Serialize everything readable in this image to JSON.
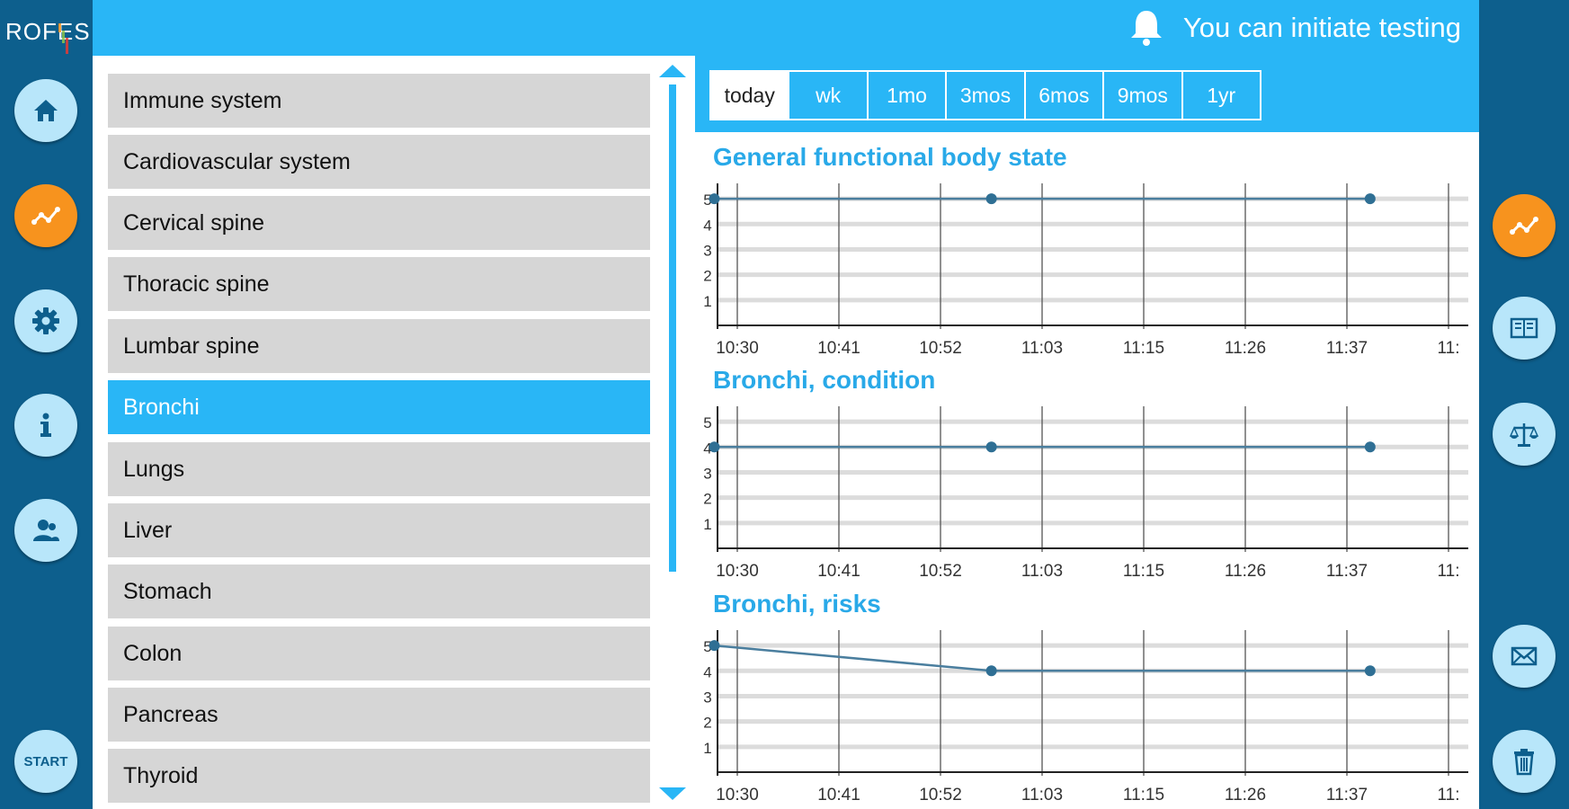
{
  "app": {
    "logo_text": "ROFES"
  },
  "left_nav": [
    {
      "name": "home",
      "icon": "home-icon"
    },
    {
      "name": "charts",
      "icon": "chart-line-icon",
      "active": true
    },
    {
      "name": "settings",
      "icon": "gear-icon"
    },
    {
      "name": "info",
      "icon": "info-icon"
    },
    {
      "name": "users",
      "icon": "users-icon"
    }
  ],
  "start_button": {
    "label": "START"
  },
  "right_nav": [
    {
      "name": "charts",
      "icon": "chart-line-icon",
      "active": true
    },
    {
      "name": "journal",
      "icon": "book-icon"
    },
    {
      "name": "balance",
      "icon": "scales-icon"
    },
    {
      "name": "mail",
      "icon": "mail-icon"
    },
    {
      "name": "delete",
      "icon": "trash-icon"
    }
  ],
  "notification": {
    "text": "You can initiate testing",
    "icon": "bell-icon"
  },
  "organs": {
    "selected": "Bronchi",
    "items": [
      "Immune system",
      "Cardiovascular system",
      "Cervical spine",
      "Thoracic spine",
      "Lumbar spine",
      "Bronchi",
      "Lungs",
      "Liver",
      "Stomach",
      "Colon",
      "Pancreas",
      "Thyroid"
    ]
  },
  "period_tabs": {
    "selected": "today",
    "items": [
      "today",
      "wk",
      "1mo",
      "3mos",
      "6mos",
      "9mos",
      "1yr"
    ]
  },
  "colors": {
    "accent": "#29b6f6",
    "rail": "#0d5f8d",
    "active": "#f7931e",
    "line": "#4a7e9e"
  },
  "chart_data": [
    {
      "type": "line",
      "title": "General functional body state",
      "y_ticks": [
        "1",
        "2",
        "3",
        "4",
        "5"
      ],
      "x_ticks": [
        "10:30",
        "10:41",
        "10:52",
        "11:03",
        "11:15",
        "11:26",
        "11:37",
        "11:"
      ],
      "ylim": [
        0,
        5.5
      ],
      "points": [
        {
          "x": "10:28",
          "y": 5
        },
        {
          "x": "10:58",
          "y": 5
        },
        {
          "x": "11:39",
          "y": 5
        }
      ]
    },
    {
      "type": "line",
      "title": "Bronchi, condition",
      "y_ticks": [
        "1",
        "2",
        "3",
        "4",
        "5"
      ],
      "x_ticks": [
        "10:30",
        "10:41",
        "10:52",
        "11:03",
        "11:15",
        "11:26",
        "11:37",
        "11:"
      ],
      "ylim": [
        0,
        5.5
      ],
      "points": [
        {
          "x": "10:28",
          "y": 4
        },
        {
          "x": "10:58",
          "y": 4
        },
        {
          "x": "11:39",
          "y": 4
        }
      ]
    },
    {
      "type": "line",
      "title": "Bronchi, risks",
      "y_ticks": [
        "1",
        "2",
        "3",
        "4",
        "5"
      ],
      "x_ticks": [
        "10:30",
        "10:41",
        "10:52",
        "11:03",
        "11:15",
        "11:26",
        "11:37",
        "11:"
      ],
      "ylim": [
        0,
        5.5
      ],
      "points": [
        {
          "x": "10:28",
          "y": 5
        },
        {
          "x": "10:58",
          "y": 4
        },
        {
          "x": "11:39",
          "y": 4
        }
      ]
    }
  ]
}
